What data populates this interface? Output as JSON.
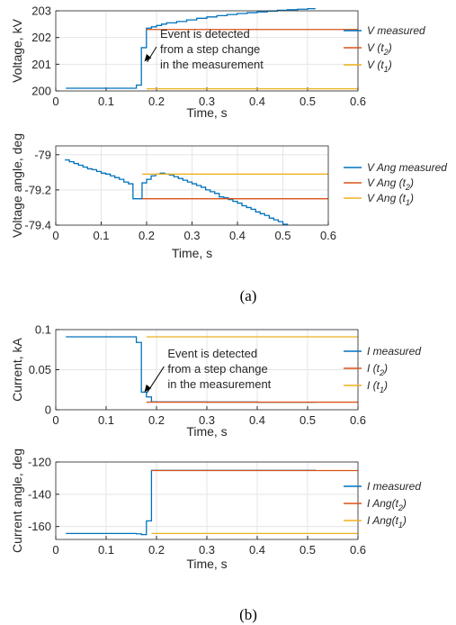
{
  "colors": {
    "blue": "#0072BD",
    "red": "#D95319",
    "yellow": "#EDB120",
    "grid": "#e5e5e5",
    "axis": "#262626"
  },
  "captions": {
    "a": "(a)",
    "b": "(b)"
  },
  "chart_data": [
    {
      "type": "line",
      "xlabel": "Time, s",
      "ylabel": "Voltage, kV",
      "xlim": [
        0,
        0.6
      ],
      "ylim": [
        200,
        203
      ],
      "xticks": [
        0,
        0.1,
        0.2,
        0.3,
        0.4,
        0.5,
        0.6
      ],
      "xtick_labels": [
        "0",
        "0.1",
        "0.2",
        "0.3",
        "0.4",
        "0.5",
        "0.6"
      ],
      "yticks": [
        200,
        201,
        202,
        203
      ],
      "ytick_labels": [
        "200",
        "201",
        "202",
        "203"
      ],
      "grid": true,
      "legend_position": "right",
      "legend": [
        {
          "main": "V measured",
          "sub": "",
          "suffix": "",
          "color": "blue"
        },
        {
          "main": "V (t",
          "sub": "2",
          "suffix": ")",
          "color": "red"
        },
        {
          "main": "V (t",
          "sub": "1",
          "suffix": ")",
          "color": "yellow"
        }
      ],
      "annotation": {
        "lines": [
          "Event is detected",
          "from a step change",
          "in the measurement"
        ],
        "text_at": [
          0.2,
          201.55
        ],
        "arrow_to": [
          0.176,
          201.1
        ]
      },
      "series": [
        {
          "color": "blue",
          "step": true,
          "x": [
            0.02,
            0.16,
            0.17,
            0.18,
            0.19,
            0.2,
            0.21,
            0.22,
            0.24,
            0.26,
            0.28,
            0.3,
            0.32,
            0.34,
            0.36,
            0.38,
            0.4,
            0.42,
            0.44,
            0.46,
            0.48,
            0.5,
            0.515
          ],
          "y": [
            200.1,
            200.22,
            201.62,
            202.35,
            202.4,
            202.45,
            202.5,
            202.55,
            202.6,
            202.66,
            202.72,
            202.77,
            202.82,
            202.86,
            202.9,
            202.93,
            202.96,
            202.99,
            203.02,
            203.04,
            203.06,
            203.08,
            203.09
          ]
        },
        {
          "color": "red",
          "step": false,
          "x": [
            0.18,
            0.6
          ],
          "y": [
            202.3,
            202.3
          ]
        },
        {
          "color": "yellow",
          "step": false,
          "x": [
            0.18,
            0.6
          ],
          "y": [
            200.08,
            200.08
          ]
        }
      ]
    },
    {
      "type": "line",
      "xlabel": "Time, s",
      "ylabel": "Voltage angle, deg",
      "xlim": [
        0,
        0.6
      ],
      "ylim": [
        -79.4,
        -78.95
      ],
      "xticks": [
        0,
        0.1,
        0.2,
        0.3,
        0.4,
        0.5,
        0.6
      ],
      "xtick_labels": [
        "0",
        "0.1",
        "0.2",
        "0.3",
        "0.4",
        "0.5",
        "0.6"
      ],
      "yticks": [
        -79,
        -79.2,
        -79.4
      ],
      "ytick_labels": [
        "-79",
        "-79.2",
        "-79.4"
      ],
      "grid": true,
      "legend_position": "right",
      "legend": [
        {
          "main": "V Ang measured",
          "sub": "",
          "suffix": "",
          "color": "blue"
        },
        {
          "main": "V Ang (t",
          "sub": "2",
          "suffix": ")",
          "color": "red"
        },
        {
          "main": "V Ang (t",
          "sub": "1",
          "suffix": ")",
          "color": "yellow"
        }
      ],
      "annotation": null,
      "series": [
        {
          "color": "blue",
          "step": true,
          "x": [
            0.02,
            0.03,
            0.04,
            0.05,
            0.06,
            0.07,
            0.08,
            0.09,
            0.1,
            0.11,
            0.12,
            0.13,
            0.14,
            0.15,
            0.16,
            0.17,
            0.18,
            0.19,
            0.2,
            0.21,
            0.22,
            0.23,
            0.24,
            0.25,
            0.26,
            0.27,
            0.28,
            0.29,
            0.3,
            0.31,
            0.32,
            0.33,
            0.34,
            0.35,
            0.36,
            0.37,
            0.38,
            0.39,
            0.4,
            0.41,
            0.42,
            0.43,
            0.44,
            0.45,
            0.46,
            0.47,
            0.48,
            0.49,
            0.5,
            0.51
          ],
          "y": [
            -79.03,
            -79.04,
            -79.05,
            -79.06,
            -79.07,
            -79.08,
            -79.085,
            -79.095,
            -79.105,
            -79.11,
            -79.12,
            -79.13,
            -79.14,
            -79.155,
            -79.165,
            -79.25,
            -79.25,
            -79.16,
            -79.14,
            -79.12,
            -79.11,
            -79.105,
            -79.11,
            -79.115,
            -79.125,
            -79.135,
            -79.145,
            -79.155,
            -79.165,
            -79.175,
            -79.185,
            -79.2,
            -79.21,
            -79.22,
            -79.24,
            -79.245,
            -79.255,
            -79.265,
            -79.275,
            -79.29,
            -79.3,
            -79.31,
            -79.325,
            -79.335,
            -79.345,
            -79.36,
            -79.37,
            -79.38,
            -79.395,
            -79.4
          ]
        },
        {
          "color": "red",
          "step": false,
          "x": [
            0.19,
            0.6
          ],
          "y": [
            -79.25,
            -79.25
          ]
        },
        {
          "color": "yellow",
          "step": false,
          "x": [
            0.19,
            0.6
          ],
          "y": [
            -79.11,
            -79.11
          ]
        }
      ]
    },
    {
      "type": "line",
      "xlabel": "Time, s",
      "ylabel": "Current, kA",
      "xlim": [
        0,
        0.6
      ],
      "ylim": [
        0,
        0.1
      ],
      "xticks": [
        0,
        0.1,
        0.2,
        0.3,
        0.4,
        0.5,
        0.6
      ],
      "xtick_labels": [
        "0",
        "0.1",
        "0.2",
        "0.3",
        "0.4",
        "0.5",
        "0.6"
      ],
      "yticks": [
        0,
        0.05,
        0.1
      ],
      "ytick_labels": [
        "0",
        "0.05",
        "0.1"
      ],
      "grid": true,
      "legend_position": "right",
      "legend": [
        {
          "main": "I measured",
          "sub": "",
          "suffix": "",
          "color": "blue"
        },
        {
          "main": "I (t",
          "sub": "2",
          "suffix": ")",
          "color": "red"
        },
        {
          "main": "I (t",
          "sub": "1",
          "suffix": ")",
          "color": "yellow"
        }
      ],
      "annotation": {
        "lines": [
          "Event is detected",
          "from a step change",
          "in the measurement"
        ],
        "text_at": [
          0.215,
          0.0505
        ],
        "arrow_to": [
          0.176,
          0.022
        ]
      },
      "series": [
        {
          "color": "blue",
          "step": true,
          "x": [
            0.02,
            0.16,
            0.17,
            0.18,
            0.19,
            0.2,
            0.3,
            0.4,
            0.515
          ],
          "y": [
            0.091,
            0.084,
            0.022,
            0.016,
            0.01,
            0.0098,
            0.0096,
            0.0094,
            0.0092
          ]
        },
        {
          "color": "red",
          "step": false,
          "x": [
            0.18,
            0.6
          ],
          "y": [
            0.0095,
            0.0095
          ]
        },
        {
          "color": "yellow",
          "step": false,
          "x": [
            0.18,
            0.6
          ],
          "y": [
            0.091,
            0.091
          ]
        }
      ]
    },
    {
      "type": "line",
      "xlabel": "Time, s",
      "ylabel": "Current angle, deg",
      "xlim": [
        0,
        0.6
      ],
      "ylim": [
        -168,
        -120
      ],
      "xticks": [
        0,
        0.1,
        0.2,
        0.3,
        0.4,
        0.5,
        0.6
      ],
      "xtick_labels": [
        "0",
        "0.1",
        "0.2",
        "0.3",
        "0.4",
        "0.5",
        "0.6"
      ],
      "yticks": [
        -120,
        -140,
        -160
      ],
      "ytick_labels": [
        "-120",
        "-140",
        "-160"
      ],
      "grid": true,
      "legend_position": "right",
      "legend": [
        {
          "main": "I measured",
          "sub": "",
          "suffix": "",
          "color": "blue"
        },
        {
          "main": "I Ang(t",
          "sub": "2",
          "suffix": ")",
          "color": "red"
        },
        {
          "main": "I Ang(t",
          "sub": "1",
          "suffix": ")",
          "color": "yellow"
        }
      ],
      "annotation": null,
      "series": [
        {
          "color": "blue",
          "step": true,
          "x": [
            0.02,
            0.16,
            0.17,
            0.18,
            0.19,
            0.515
          ],
          "y": [
            -164.3,
            -164.5,
            -165,
            -156.5,
            -125.2,
            -125.5
          ]
        },
        {
          "color": "red",
          "step": false,
          "x": [
            0.19,
            0.6
          ],
          "y": [
            -125.3,
            -125.3
          ]
        },
        {
          "color": "yellow",
          "step": false,
          "x": [
            0.19,
            0.6
          ],
          "y": [
            -164.3,
            -164.3
          ]
        }
      ]
    }
  ]
}
